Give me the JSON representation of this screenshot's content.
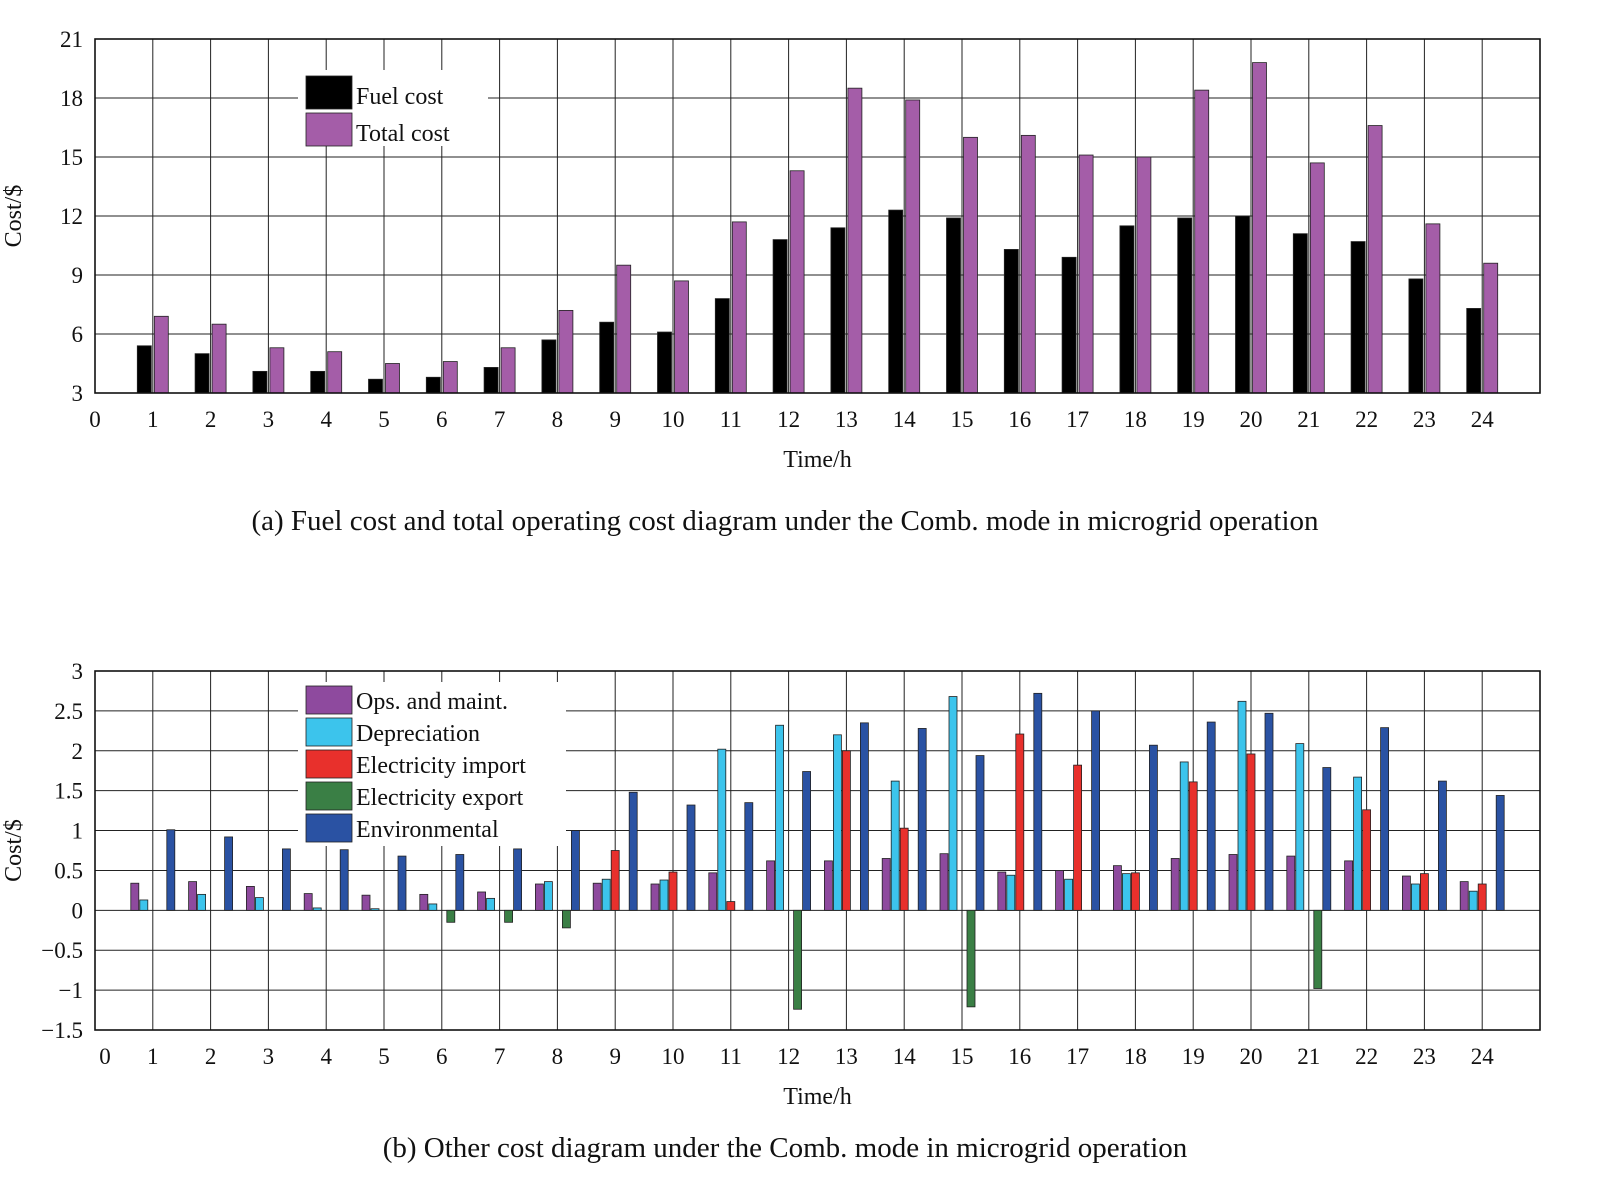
{
  "chart_data": [
    {
      "type": "bar",
      "caption": "(a) Fuel cost and total operating cost diagram under the Comb. mode in microgrid operation",
      "xlabel": "Time/h",
      "ylabel": "Cost/$",
      "xlim": [
        0,
        25
      ],
      "ylim": [
        3,
        21
      ],
      "yticks": [
        3,
        6,
        9,
        12,
        15,
        18,
        21
      ],
      "ytick_labels": [
        "3",
        "6",
        "9",
        "12",
        "15",
        "18",
        "21"
      ],
      "xtick_labels": [
        "0",
        "1",
        "2",
        "3",
        "4",
        "5",
        "6",
        "7",
        "8",
        "9",
        "10",
        "11",
        "12",
        "13",
        "14",
        "15",
        "16",
        "17",
        "18",
        "19",
        "20",
        "21",
        "22",
        "23",
        "24"
      ],
      "grid": true,
      "legend": "top-left",
      "categories": [
        1,
        2,
        3,
        4,
        5,
        6,
        7,
        8,
        9,
        10,
        11,
        12,
        13,
        14,
        15,
        16,
        17,
        18,
        19,
        20,
        21,
        22,
        23,
        24
      ],
      "series": [
        {
          "name": "Fuel cost",
          "color": "#000000",
          "values": [
            5.4,
            5.0,
            4.1,
            4.1,
            3.7,
            3.8,
            4.3,
            5.7,
            6.6,
            6.1,
            7.8,
            10.8,
            11.4,
            12.3,
            11.9,
            10.3,
            9.9,
            11.5,
            11.9,
            12.0,
            11.1,
            10.7,
            8.8,
            7.3
          ]
        },
        {
          "name": "Total cost",
          "color": "#a45da8",
          "values": [
            6.9,
            6.5,
            5.3,
            5.1,
            4.5,
            4.6,
            5.3,
            7.2,
            9.5,
            8.7,
            11.7,
            14.3,
            18.5,
            17.9,
            16.0,
            16.1,
            15.1,
            15.0,
            18.4,
            19.8,
            14.7,
            16.6,
            11.6,
            9.6
          ]
        }
      ]
    },
    {
      "type": "bar",
      "caption": "(b) Other cost diagram under the Comb. mode in microgrid operation",
      "xlabel": "Time/h",
      "ylabel": "Cost/$",
      "xlim": [
        0,
        25
      ],
      "ylim": [
        -1.5,
        3
      ],
      "yticks": [
        -1.5,
        -1,
        -0.5,
        0,
        0.5,
        1,
        1.5,
        2,
        2.5,
        3
      ],
      "ytick_labels": [
        "−1.5",
        "−1",
        "−0.5",
        "0",
        "0.5",
        "1",
        "1.5",
        "2",
        "2.5",
        "3"
      ],
      "xtick_labels": [
        "0",
        "1",
        "2",
        "3",
        "4",
        "5",
        "6",
        "7",
        "8",
        "9",
        "10",
        "11",
        "12",
        "13",
        "14",
        "15",
        "16",
        "17",
        "18",
        "19",
        "20",
        "21",
        "22",
        "23",
        "24"
      ],
      "grid": true,
      "legend": "top-left",
      "categories": [
        1,
        2,
        3,
        4,
        5,
        6,
        7,
        8,
        9,
        10,
        11,
        12,
        13,
        14,
        15,
        16,
        17,
        18,
        19,
        20,
        21,
        22,
        23,
        24
      ],
      "series": [
        {
          "name": "Ops. and maint.",
          "color": "#8e4a9e",
          "values": [
            0.34,
            0.36,
            0.3,
            0.21,
            0.19,
            0.2,
            0.23,
            0.33,
            0.34,
            0.33,
            0.47,
            0.62,
            0.62,
            0.65,
            0.71,
            0.48,
            0.5,
            0.56,
            0.65,
            0.7,
            0.68,
            0.62,
            0.43,
            0.36
          ]
        },
        {
          "name": "Depreciation",
          "color": "#3cc4ec",
          "values": [
            0.13,
            0.2,
            0.16,
            0.03,
            0.02,
            0.08,
            0.15,
            0.36,
            0.39,
            0.38,
            2.02,
            2.32,
            2.2,
            1.62,
            2.68,
            0.44,
            0.39,
            0.46,
            1.86,
            2.62,
            2.09,
            1.67,
            0.33,
            0.24
          ]
        },
        {
          "name": "Electricity import",
          "color": "#e8302c",
          "values": [
            0,
            0,
            0,
            0,
            0,
            0,
            0,
            0,
            0.75,
            0.48,
            0.11,
            0,
            2.0,
            1.03,
            0,
            2.21,
            1.82,
            0.47,
            1.61,
            1.96,
            0,
            1.26,
            0.46,
            0.33
          ]
        },
        {
          "name": "Electricity export",
          "color": "#3a7f45",
          "values": [
            0,
            0,
            0,
            0,
            0,
            -0.15,
            -0.15,
            -0.22,
            0,
            0,
            0,
            -1.24,
            0,
            0,
            -1.21,
            0,
            0,
            0,
            0,
            0,
            -0.98,
            0,
            0,
            0
          ]
        },
        {
          "name": "Environmental",
          "color": "#2a52a3",
          "values": [
            1.01,
            0.92,
            0.77,
            0.76,
            0.68,
            0.7,
            0.77,
            1.0,
            1.48,
            1.32,
            1.35,
            1.74,
            2.35,
            2.28,
            1.94,
            2.72,
            2.5,
            2.07,
            2.36,
            2.47,
            1.79,
            2.29,
            1.62,
            1.44
          ]
        }
      ]
    }
  ]
}
